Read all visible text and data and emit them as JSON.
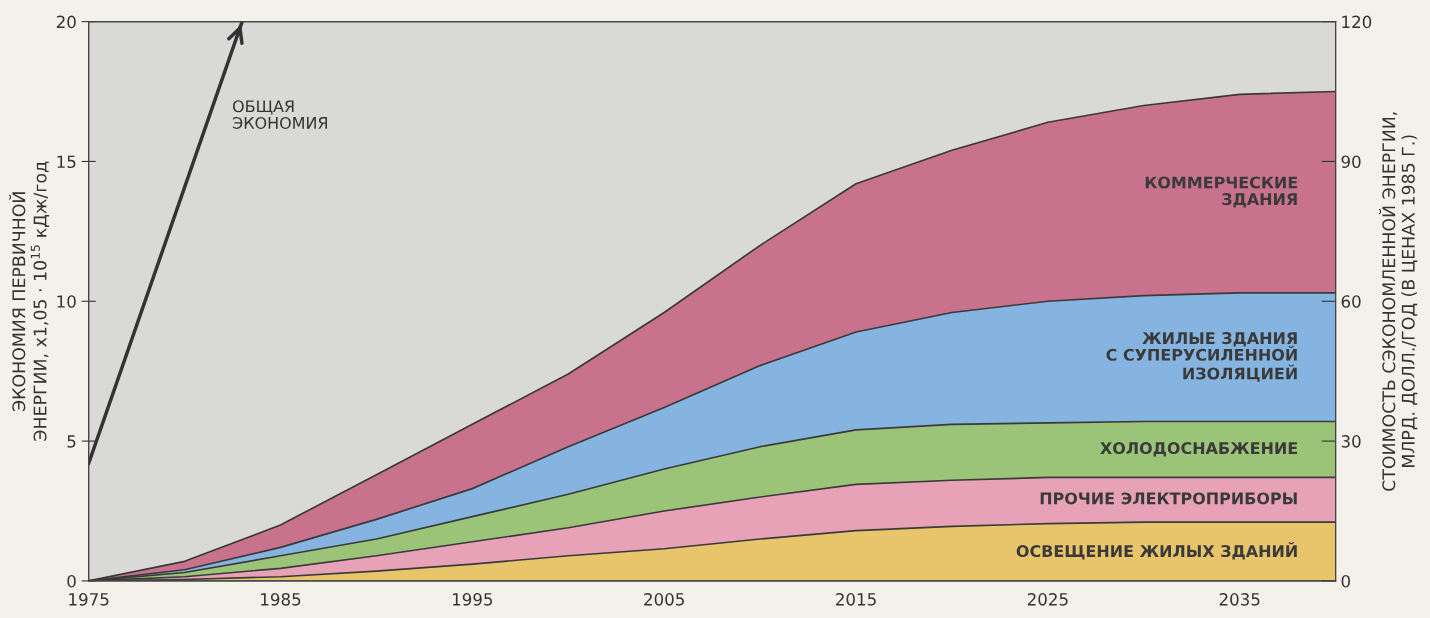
{
  "chart_data": {
    "type": "area",
    "stacked": true,
    "x": [
      1975,
      1980,
      1985,
      1990,
      1995,
      2000,
      2005,
      2010,
      2015,
      2020,
      2025,
      2030,
      2035,
      2040
    ],
    "series": [
      {
        "name": "ОСВЕЩЕНИЕ ЖИЛЫХ ЗДАНИЙ",
        "color": "#e8c46a",
        "values": [
          0,
          0.05,
          0.15,
          0.35,
          0.6,
          0.9,
          1.15,
          1.5,
          1.8,
          1.95,
          2.05,
          2.1,
          2.1,
          2.1
        ]
      },
      {
        "name": "ПРОЧИЕ ЭЛЕКТРОПРИБОРЫ",
        "color": "#e8a2b8",
        "values": [
          0,
          0.1,
          0.3,
          0.55,
          0.8,
          1.0,
          1.35,
          1.5,
          1.65,
          1.65,
          1.65,
          1.6,
          1.6,
          1.6
        ]
      },
      {
        "name": "ХОЛОДОСНАБЖЕНИЕ",
        "color": "#9cc479",
        "values": [
          0,
          0.15,
          0.45,
          0.6,
          0.9,
          1.2,
          1.5,
          1.8,
          1.95,
          2.0,
          1.95,
          2.0,
          2.0,
          2.0
        ]
      },
      {
        "name": "ЖИЛЫЕ ЗДАНИЯ\nС СУПЕРУСИЛЕННОЙ\nИЗОЛЯЦИЕЙ",
        "color": "#86b4e0",
        "values": [
          0,
          0.1,
          0.3,
          0.7,
          1.0,
          1.7,
          2.2,
          2.9,
          3.5,
          4.0,
          4.35,
          4.5,
          4.6,
          4.6
        ]
      },
      {
        "name": "КОММЕРЧЕСКИЕ\nЗДАНИЯ",
        "color": "#c9728e",
        "values": [
          0,
          0.3,
          0.8,
          1.6,
          2.3,
          2.6,
          3.4,
          4.3,
          5.3,
          5.8,
          6.4,
          6.8,
          7.1,
          7.2
        ]
      },
      {
        "type": "line",
        "color": "#333333",
        "x": [
          1975,
          1983
        ],
        "values": [
          4.2,
          20
        ]
      }
    ],
    "annotations": [
      "ОБЩАЯ\nЭКОНОМИЯ"
    ],
    "ylabel": "ЭКОНОМИЯ ПЕРВИЧНОЙ\nЭНЕРГИИ, x1,05 · 10$^{15}$ кДж/год",
    "y2label": "СТОИМОСТЬ СЭКОНОМЛЕННОЙ ЭНЕРГИИ,\nМЛРД. ДОЛЛ./ГОД (В ЦЕНАХ 1985 Г.)",
    "xlim": [
      1975,
      2040
    ],
    "xticks": [
      1975,
      1985,
      1995,
      2005,
      2015,
      2025,
      2035
    ],
    "ylim": [
      0,
      20
    ],
    "yticks": [
      0,
      5,
      10,
      15,
      20
    ],
    "y2lim": [
      0,
      120
    ],
    "y2ticks": [
      0,
      30,
      60,
      90,
      120
    ],
    "grid": false,
    "legend": false
  }
}
